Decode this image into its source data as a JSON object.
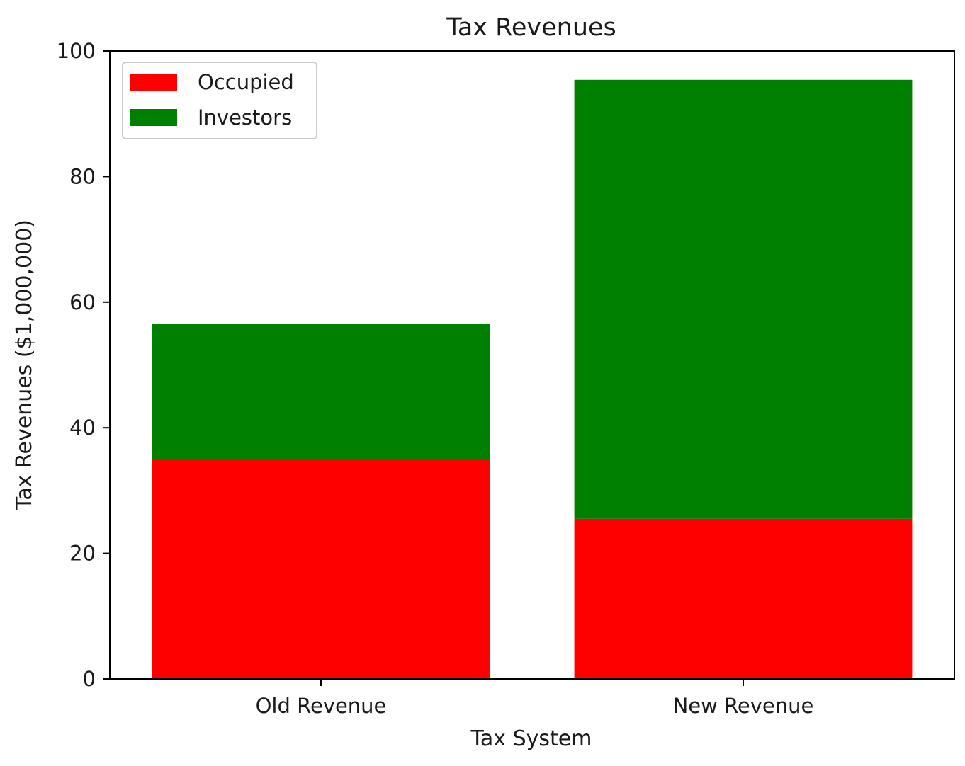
{
  "chart_data": {
    "type": "bar",
    "stacked": true,
    "title": "Tax Revenues",
    "xlabel": "Tax System",
    "ylabel": "Tax Revenues ($1,000,000)",
    "categories": [
      "Old Revenue",
      "New Revenue"
    ],
    "series": [
      {
        "name": "Occupied",
        "color": "#ff0000",
        "values": [
          35.0,
          25.5
        ]
      },
      {
        "name": "Investors",
        "color": "#008000",
        "values": [
          21.6,
          69.9
        ]
      }
    ],
    "ylim": [
      0,
      100
    ],
    "yticks": [
      "0",
      "20",
      "40",
      "60",
      "80",
      "100"
    ],
    "ytick_values": [
      0,
      20,
      40,
      60,
      80,
      100
    ],
    "grid": false,
    "legend_position": "top-left"
  }
}
